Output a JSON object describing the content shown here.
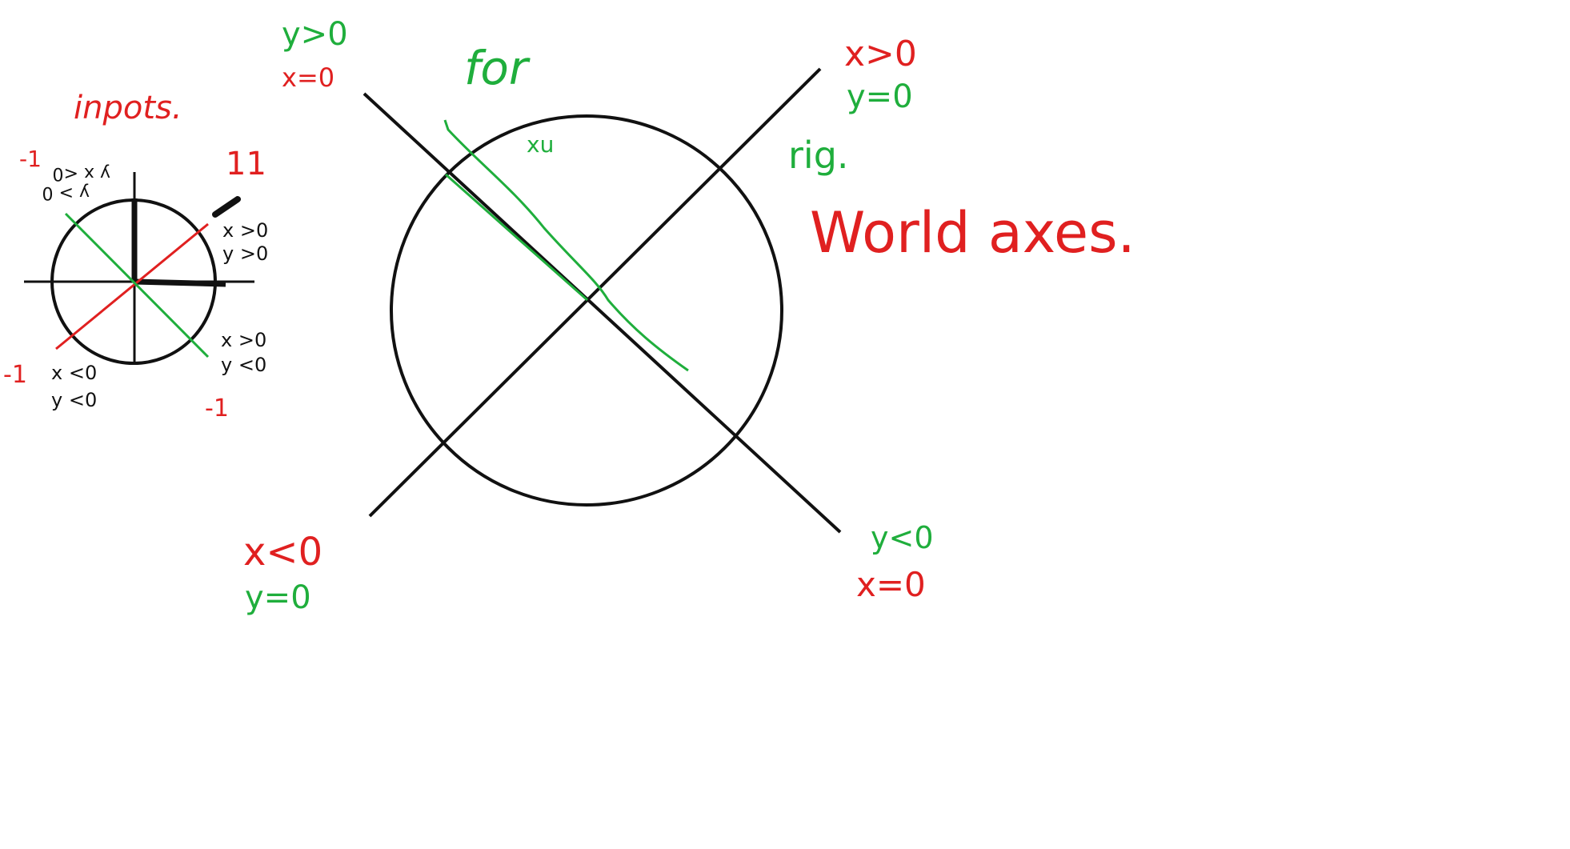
{
  "colors": {
    "ink": "#111111",
    "red": "#e02020",
    "green": "#1fae3c",
    "background": "#ffffff"
  },
  "small_diagram": {
    "title": "inpots.",
    "top_right_value": "11",
    "top_left_value": "-1",
    "bottom_left_value": "-1",
    "bottom_right_value": "-1",
    "quad_top_left": [
      "y x <0",
      "y > 0"
    ],
    "quad_top_right": [
      "x >0",
      "y >0"
    ],
    "quad_bottom_right": [
      "x >0",
      "y <0"
    ],
    "quad_bottom_left": [
      "x <0",
      "y <0"
    ]
  },
  "large_diagram": {
    "label_top_left": [
      "y>0",
      "x=0"
    ],
    "label_top_right": [
      "x>0",
      "y=0"
    ],
    "label_bottom_left": [
      "x<0",
      "y=0"
    ],
    "label_bottom_right": [
      "y<0",
      "x=0"
    ],
    "annotation_for": "for",
    "annotation_xu": "xu",
    "annotation_rig": "rig.",
    "annotation_world_axes": "World axes."
  }
}
